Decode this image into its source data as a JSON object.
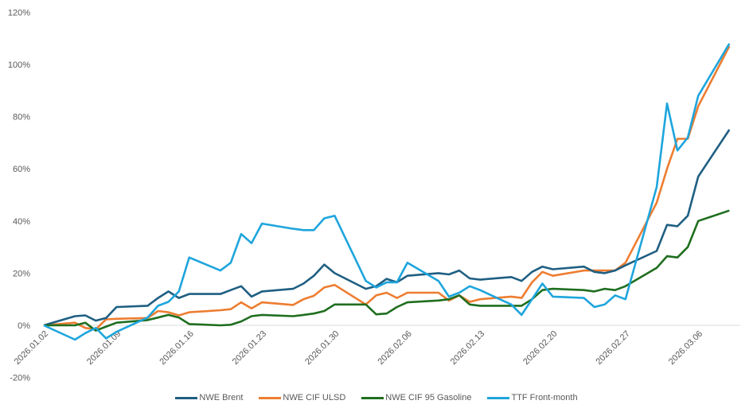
{
  "chart_data": {
    "type": "line",
    "title": "",
    "xlabel": "",
    "ylabel": "",
    "ylim": [
      -20,
      120
    ],
    "yticks": [
      -20,
      0,
      20,
      40,
      60,
      80,
      100,
      120
    ],
    "ytick_labels": [
      "-20%",
      "0%",
      "20%",
      "40%",
      "60%",
      "80%",
      "100%",
      "120%"
    ],
    "xtick_labels": [
      "2026.01.02",
      "2026.01.09",
      "2026.01.16",
      "2026.01.23",
      "2026.01.30",
      "2026.02.06",
      "2026.02.13",
      "2026.02.20",
      "2026.02.27",
      "2026.03.06"
    ],
    "grid": "zero line only",
    "legend_position": "bottom",
    "x": [
      "2026.01.02",
      "2026.01.05",
      "2026.01.06",
      "2026.01.07",
      "2026.01.08",
      "2026.01.09",
      "2026.01.12",
      "2026.01.13",
      "2026.01.14",
      "2026.01.15",
      "2026.01.16",
      "2026.01.19",
      "2026.01.20",
      "2026.01.21",
      "2026.01.22",
      "2026.01.23",
      "2026.01.26",
      "2026.01.27",
      "2026.01.28",
      "2026.01.29",
      "2026.01.30",
      "2026.02.02",
      "2026.02.03",
      "2026.02.04",
      "2026.02.05",
      "2026.02.06",
      "2026.02.09",
      "2026.02.10",
      "2026.02.11",
      "2026.02.12",
      "2026.02.13",
      "2026.02.16",
      "2026.02.17",
      "2026.02.18",
      "2026.02.19",
      "2026.02.20",
      "2026.02.23",
      "2026.02.24",
      "2026.02.25",
      "2026.02.26",
      "2026.02.27",
      "2026.03.02",
      "2026.03.03",
      "2026.03.04",
      "2026.03.05",
      "2026.03.06",
      "2026.03.09"
    ],
    "series": [
      {
        "name": "NWE Brent",
        "color": "#1f5f82",
        "values": [
          0,
          3.5,
          3.8,
          1.8,
          2.8,
          7,
          7.5,
          10.5,
          13,
          10.5,
          12,
          12,
          13.5,
          15,
          11,
          13,
          14,
          16,
          19,
          23.3,
          20,
          14,
          15,
          17.8,
          16.5,
          19,
          20,
          19.5,
          21,
          18,
          17.5,
          18.5,
          17,
          20.5,
          22.5,
          21.5,
          22.5,
          20.5,
          20,
          21,
          23,
          28.5,
          38.5,
          38,
          42,
          57,
          75
        ]
      },
      {
        "name": "NWE CIF ULSD",
        "color": "#ed7d31",
        "values": [
          0,
          1,
          -1,
          -1.5,
          2.3,
          2.5,
          2.8,
          5.5,
          5,
          3.8,
          5,
          5.8,
          6.2,
          8.8,
          6.5,
          8.8,
          7.8,
          10,
          11.3,
          14.5,
          15.5,
          8,
          11.5,
          12.5,
          10.5,
          12.5,
          12.5,
          9.5,
          11.5,
          9,
          10,
          11,
          10.5,
          16.5,
          20.5,
          19,
          21,
          21,
          21,
          21,
          24,
          47,
          60,
          71.5,
          71.5,
          84,
          107
        ]
      },
      {
        "name": "NWE CIF 95 Gasoline",
        "color": "#1f6e1f",
        "values": [
          0,
          0,
          1,
          -2,
          -0.5,
          1,
          2,
          3,
          4,
          3,
          0.5,
          0,
          0.2,
          1.5,
          3.5,
          4,
          3.5,
          4,
          4.5,
          5.5,
          8,
          8,
          4.2,
          4.5,
          7,
          8.8,
          9.5,
          10,
          11.5,
          8,
          7.5,
          7.5,
          7.5,
          10,
          13.5,
          14,
          13.5,
          13,
          14,
          13.5,
          15,
          22,
          26.5,
          26,
          30,
          40,
          44
        ]
      },
      {
        "name": "TTF Front-month",
        "color": "#1ea5dc",
        "values": [
          0,
          -5.5,
          -3,
          -1,
          -5,
          -2.5,
          3,
          7.5,
          9,
          13,
          26,
          21,
          24,
          35,
          31.5,
          39,
          37,
          36.5,
          36.5,
          41,
          42,
          17,
          14.5,
          16.5,
          16.5,
          24,
          17,
          11,
          12.5,
          15,
          13.5,
          8,
          4,
          10,
          16,
          11,
          10.5,
          7,
          8,
          11.5,
          10,
          53,
          85,
          67,
          72,
          88,
          108
        ]
      }
    ]
  }
}
